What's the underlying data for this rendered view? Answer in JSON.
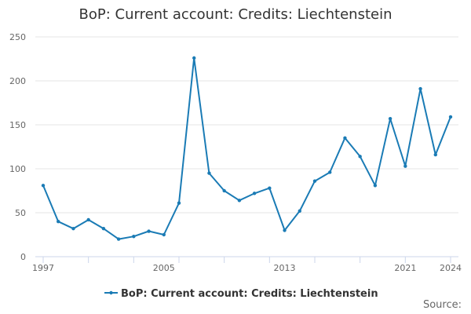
{
  "chart_data": {
    "type": "line",
    "title": "BoP: Current account: Credits: Liechtenstein",
    "xlabel": "",
    "ylabel": "",
    "ylim": [
      0,
      250
    ],
    "xlim": [
      1997,
      2024
    ],
    "y_ticks": [
      0,
      50,
      100,
      150,
      200,
      250
    ],
    "x_tick_labels": [
      "1997",
      "2005",
      "2013",
      "2021",
      "2024"
    ],
    "grid": "horizontal",
    "legend_position": "bottom",
    "series": [
      {
        "name": "BoP: Current account: Credits: Liechtenstein",
        "color": "#1a7bb5",
        "x": [
          1997,
          1998,
          1999,
          2000,
          2001,
          2002,
          2003,
          2004,
          2005,
          2006,
          2007,
          2008,
          2009,
          2010,
          2011,
          2012,
          2013,
          2014,
          2015,
          2016,
          2017,
          2018,
          2019,
          2020,
          2021,
          2022,
          2023,
          2024
        ],
        "values": [
          81,
          40,
          32,
          42,
          32,
          20,
          23,
          29,
          25,
          61,
          226,
          95,
          75,
          64,
          72,
          78,
          30,
          52,
          86,
          96,
          135,
          114,
          81,
          157,
          103,
          191,
          116,
          159
        ]
      }
    ]
  },
  "source_label": "Source:"
}
